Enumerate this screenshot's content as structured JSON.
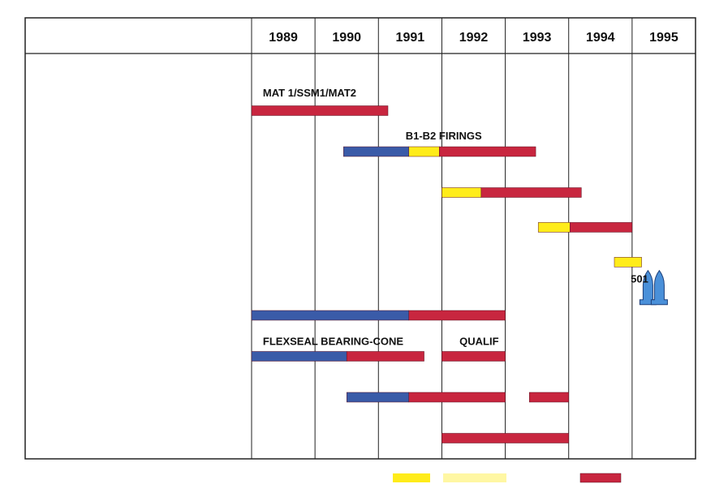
{
  "colors": {
    "development": "#3a5ba8",
    "qualification": "#c8263f",
    "flight": "#ffec1a",
    "grid": "#222222",
    "rocket": "#4a90d9"
  },
  "chart_data": {
    "type": "gantt",
    "title": "",
    "xlabel": "",
    "ylabel": "",
    "years": [
      "1989",
      "1990",
      "1991",
      "1992",
      "1993",
      "1994",
      "1995"
    ],
    "xlim": [
      1989,
      1996
    ],
    "rows": 10,
    "bars": [
      {
        "row": 1,
        "start": 1989.0,
        "end": 1991.15,
        "phase": "qualification"
      },
      {
        "row": 2,
        "start": 1990.45,
        "end": 1991.48,
        "phase": "development"
      },
      {
        "row": 2,
        "start": 1991.48,
        "end": 1991.96,
        "phase": "flight"
      },
      {
        "row": 2,
        "start": 1991.96,
        "end": 1993.48,
        "phase": "qualification"
      },
      {
        "row": 3,
        "start": 1992.0,
        "end": 1992.62,
        "phase": "flight"
      },
      {
        "row": 3,
        "start": 1992.62,
        "end": 1994.2,
        "phase": "qualification"
      },
      {
        "row": 3.85,
        "start": 1993.52,
        "end": 1994.02,
        "phase": "flight"
      },
      {
        "row": 3.85,
        "start": 1994.02,
        "end": 1995.0,
        "phase": "qualification"
      },
      {
        "row": 4.7,
        "start": 1994.72,
        "end": 1995.15,
        "phase": "flight"
      },
      {
        "row": 6,
        "start": 1989.0,
        "end": 1991.48,
        "phase": "development"
      },
      {
        "row": 6,
        "start": 1991.48,
        "end": 1993.0,
        "phase": "qualification"
      },
      {
        "row": 7,
        "start": 1989.0,
        "end": 1990.5,
        "phase": "development"
      },
      {
        "row": 7,
        "start": 1990.5,
        "end": 1991.72,
        "phase": "qualification"
      },
      {
        "row": 7,
        "start": 1992.0,
        "end": 1993.0,
        "phase": "qualification"
      },
      {
        "row": 8,
        "start": 1990.5,
        "end": 1991.48,
        "phase": "development"
      },
      {
        "row": 8,
        "start": 1991.48,
        "end": 1993.0,
        "phase": "qualification"
      },
      {
        "row": 8,
        "start": 1993.38,
        "end": 1994.0,
        "phase": "qualification"
      },
      {
        "row": 9,
        "start": 1992.0,
        "end": 1994.0,
        "phase": "qualification"
      }
    ],
    "annotations": [
      {
        "text": "MAT 1/SSM1/MAT2",
        "x": 1989.05,
        "row": 0.55
      },
      {
        "text": "B1-B2 FIRINGS",
        "x": 1991.3,
        "row": 1.6
      },
      {
        "text": "501",
        "x": 1994.85,
        "row": 5.1
      },
      {
        "text": "FLEXSEAL BEARING-CONE",
        "x": 1989.05,
        "row": 6.62
      },
      {
        "text": "QUALIF",
        "x": 1992.15,
        "row": 6.62
      }
    ],
    "launch_marker": {
      "x": 1995.25,
      "row": 5.4,
      "icon": "rocket-icon"
    },
    "legend": {
      "placement": "bottom",
      "entries": [
        "flight",
        "flight",
        "qualification"
      ]
    }
  }
}
